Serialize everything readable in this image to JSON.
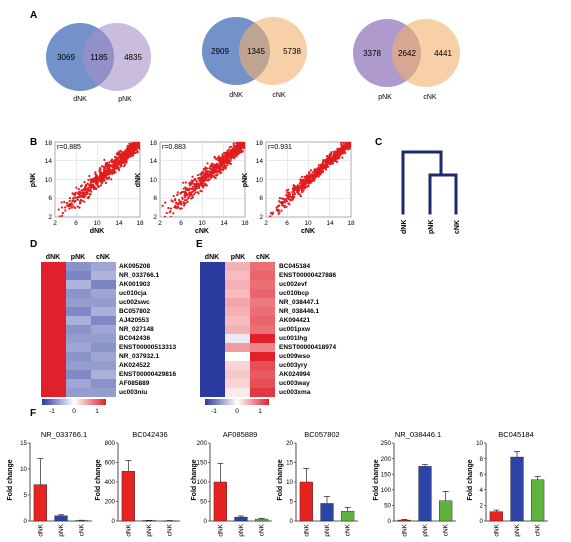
{
  "panels": {
    "A": "A",
    "B": "B",
    "C": "C",
    "D": "D",
    "E": "E",
    "F": "F"
  },
  "colors": {
    "dNK_venn": "#5b7fc1",
    "pNK_venn": "#a68fc6",
    "cNK_venn": "#f2b06c",
    "scatter": "#e21d1d",
    "dendrogram": "#1b2a6b",
    "heat_low": "#2b3a9e",
    "heat_mid": "#ffffff",
    "heat_high": "#e0212b",
    "bar_dNK": "#e52421",
    "bar_pNK": "#2b44a6",
    "bar_cNK": "#5db33e"
  },
  "chart_data": [
    {
      "type": "venn",
      "panel": "A",
      "sets": [
        "dNK",
        "pNK"
      ],
      "values": {
        "only_a": 3069,
        "overlap": 1185,
        "only_b": 4835
      }
    },
    {
      "type": "venn",
      "panel": "A",
      "sets": [
        "dNK",
        "cNK"
      ],
      "values": {
        "only_a": 2909,
        "overlap": 1345,
        "only_b": 5738
      }
    },
    {
      "type": "venn",
      "panel": "A",
      "sets": [
        "pNK",
        "cNK"
      ],
      "values": {
        "only_a": 3378,
        "overlap": 2642,
        "only_b": 4441
      }
    },
    {
      "type": "scatter",
      "panel": "B",
      "xlabel": "dNK",
      "ylabel": "pNK",
      "r_label": "r=0.885",
      "xticks": [
        2,
        6,
        10,
        14,
        18
      ],
      "yticks": [
        2,
        6,
        10,
        14,
        18
      ],
      "xlim": [
        2,
        18
      ],
      "ylim": [
        2,
        18
      ]
    },
    {
      "type": "scatter",
      "panel": "B",
      "xlabel": "cNK",
      "ylabel": "dNK",
      "r_label": "r=0.883",
      "xticks": [
        2,
        6,
        10,
        14,
        18
      ],
      "yticks": [
        2,
        6,
        10,
        14,
        18
      ],
      "xlim": [
        2,
        18
      ],
      "ylim": [
        2,
        18
      ]
    },
    {
      "type": "scatter",
      "panel": "B",
      "xlabel": "cNK",
      "ylabel": "pNK",
      "r_label": "r=0.931",
      "xticks": [
        2,
        6,
        10,
        14,
        18
      ],
      "yticks": [
        2,
        6,
        10,
        14,
        18
      ],
      "xlim": [
        2,
        18
      ],
      "ylim": [
        2,
        18
      ]
    },
    {
      "type": "dendrogram",
      "panel": "C",
      "leaves": [
        "dNK",
        "pNK",
        "cNK"
      ]
    },
    {
      "type": "heatmap",
      "panel": "D",
      "columns": [
        "dNK",
        "pNK",
        "cNK"
      ],
      "rows": [
        "AK095208",
        "NR_033766.1",
        "AK001903",
        "uc010cja",
        "uc002swc",
        "BC057802",
        "AJ420553",
        "NR_027148",
        "BC042436",
        "ENST00000513313",
        "NR_037932.1",
        "AK024522",
        "ENST00000429816",
        "AF085889",
        "uc003niu"
      ],
      "values": [
        [
          1,
          -0.55,
          -0.45
        ],
        [
          1,
          -0.62,
          -0.38
        ],
        [
          1,
          -0.38,
          -0.62
        ],
        [
          1,
          -0.55,
          -0.45
        ],
        [
          1,
          -0.5,
          -0.5
        ],
        [
          1,
          -0.6,
          -0.4
        ],
        [
          1,
          -0.4,
          -0.6
        ],
        [
          1,
          -0.55,
          -0.45
        ],
        [
          1,
          -0.5,
          -0.5
        ],
        [
          1,
          -0.45,
          -0.55
        ],
        [
          1,
          -0.55,
          -0.45
        ],
        [
          1,
          -0.5,
          -0.5
        ],
        [
          1,
          -0.6,
          -0.4
        ],
        [
          1,
          -0.45,
          -0.55
        ],
        [
          1,
          -0.5,
          -0.5
        ]
      ],
      "scale": {
        "ticks": [
          "-1",
          "0",
          "1"
        ],
        "min": -1,
        "max": 1
      }
    },
    {
      "type": "heatmap",
      "panel": "E",
      "columns": [
        "dNK",
        "pNK",
        "cNK"
      ],
      "rows": [
        "BC045184",
        "ENST00000427886",
        "uc002evf",
        "uc010bcp",
        "NR_038447.1",
        "NR_038446.1",
        "AK094421",
        "uc001pxw",
        "uc001lhg",
        "ENST00000418974",
        "uc009wso",
        "uc003yry",
        "AK024994",
        "uc003way",
        "uc003xma"
      ],
      "values": [
        [
          -1,
          0.35,
          0.65
        ],
        [
          -1,
          0.3,
          0.7
        ],
        [
          -1,
          0.35,
          0.65
        ],
        [
          -1,
          0.3,
          0.7
        ],
        [
          -1,
          0.4,
          0.6
        ],
        [
          -1,
          0.35,
          0.65
        ],
        [
          -1,
          0.3,
          0.7
        ],
        [
          -1,
          0.35,
          0.65
        ],
        [
          -1,
          -0.1,
          1
        ],
        [
          -1,
          0.45,
          0.55
        ],
        [
          -1,
          0.0,
          1
        ],
        [
          -1,
          0.2,
          0.8
        ],
        [
          -1,
          0.25,
          0.75
        ],
        [
          -1,
          0.2,
          0.8
        ],
        [
          -1,
          0.1,
          0.9
        ]
      ],
      "scale": {
        "ticks": [
          "-1",
          "0",
          "1"
        ],
        "min": -1,
        "max": 1
      }
    },
    {
      "type": "bar",
      "panel": "F",
      "title": "NR_033766.1",
      "categories": [
        "dNK",
        "pNK",
        "cNK"
      ],
      "values": [
        7,
        1,
        0.1
      ],
      "errors": [
        5,
        0.2,
        0.05
      ],
      "ylabel": "Fold change",
      "ylim": [
        0,
        15
      ],
      "yticks": [
        0,
        5,
        10,
        15
      ]
    },
    {
      "type": "bar",
      "panel": "F",
      "title": "BC042436",
      "categories": [
        "dNK",
        "pNK",
        "cNK"
      ],
      "values": [
        510,
        5,
        3
      ],
      "errors": [
        110,
        2,
        2
      ],
      "ylabel": "Fold change",
      "ylim": [
        0,
        800
      ],
      "yticks": [
        0,
        200,
        400,
        600,
        800
      ]
    },
    {
      "type": "bar",
      "panel": "F",
      "title": "AF085889",
      "categories": [
        "dNK",
        "pNK",
        "cNK"
      ],
      "values": [
        100,
        10,
        5
      ],
      "errors": [
        48,
        3,
        2
      ],
      "ylabel": "Fold change",
      "ylim": [
        0,
        200
      ],
      "yticks": [
        0,
        50,
        100,
        150,
        200
      ]
    },
    {
      "type": "bar",
      "panel": "F",
      "title": "BC057802",
      "categories": [
        "dNK",
        "pNK",
        "cNK"
      ],
      "values": [
        10,
        4.5,
        2.5
      ],
      "errors": [
        3.5,
        1.8,
        1
      ],
      "ylabel": "Fold change",
      "ylim": [
        0,
        20
      ],
      "yticks": [
        0,
        5,
        10,
        15,
        20
      ]
    },
    {
      "type": "bar",
      "panel": "F",
      "title": "NR_038446.1",
      "categories": [
        "dNK",
        "pNK",
        "cNK"
      ],
      "values": [
        3,
        175,
        65
      ],
      "errors": [
        2,
        6,
        30
      ],
      "ylabel": "Fold change",
      "ylim": [
        0,
        250
      ],
      "yticks": [
        0,
        50,
        100,
        150,
        200,
        250
      ]
    },
    {
      "type": "bar",
      "panel": "F",
      "title": "BC045184",
      "categories": [
        "dNK",
        "pNK",
        "cNK"
      ],
      "values": [
        1.2,
        8.2,
        5.3
      ],
      "errors": [
        0.2,
        0.7,
        0.4
      ],
      "ylabel": "Fold change",
      "ylim": [
        0,
        10
      ],
      "yticks": [
        0,
        2,
        4,
        6,
        8,
        10
      ]
    }
  ]
}
